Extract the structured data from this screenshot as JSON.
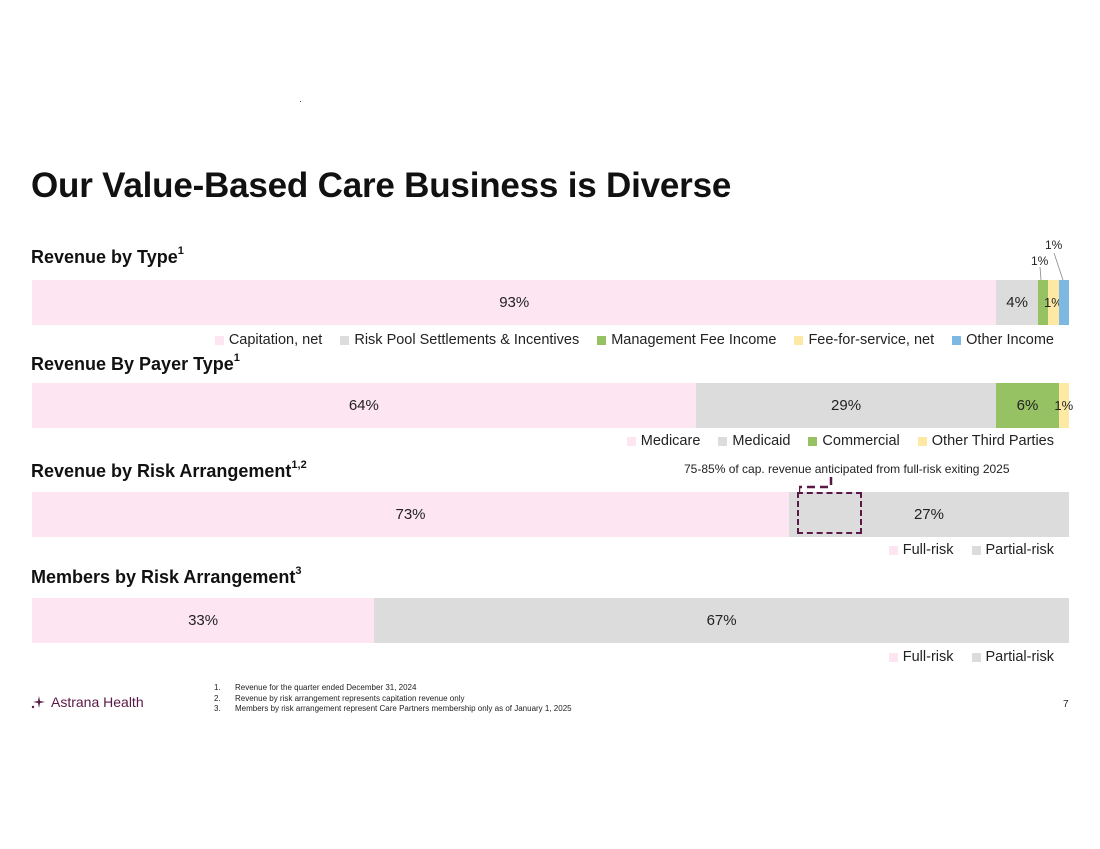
{
  "title": "Our Value-Based Care Business is Diverse",
  "colors": {
    "pink": "#fde5f1",
    "gray": "#dcdcdc",
    "green": "#96c264",
    "yellow": "#fde9a4",
    "blue": "#7cb8e2",
    "plum": "#5a1846"
  },
  "chart_data": [
    {
      "type": "bar",
      "orientation": "horizontal-stacked-100",
      "title": "Revenue by Type",
      "title_sup": "1",
      "series": [
        {
          "name": "Capitation, net",
          "value": 93,
          "label": "93%",
          "color": "#fde5f1"
        },
        {
          "name": "Risk Pool Settlements & Incentives",
          "value": 4,
          "label": "4%",
          "color": "#dcdcdc"
        },
        {
          "name": "Management Fee Income",
          "value": 1,
          "label": "1%",
          "color": "#96c264"
        },
        {
          "name": "Fee-for-service, net",
          "value": 1,
          "label": "1%",
          "color": "#fde9a4"
        },
        {
          "name": "Other Income",
          "value": 1,
          "label": "1%",
          "color": "#7cb8e2"
        }
      ],
      "legend": "bottom-right"
    },
    {
      "type": "bar",
      "orientation": "horizontal-stacked-100",
      "title": "Revenue By Payer Type",
      "title_sup": "1",
      "series": [
        {
          "name": "Medicare",
          "value": 64,
          "label": "64%",
          "color": "#fde5f1"
        },
        {
          "name": "Medicaid",
          "value": 29,
          "label": "29%",
          "color": "#dcdcdc"
        },
        {
          "name": "Commercial",
          "value": 6,
          "label": "6%",
          "color": "#96c264"
        },
        {
          "name": "Other Third Parties",
          "value": 1,
          "label": "1%",
          "color": "#fde9a4"
        }
      ],
      "legend": "bottom-right"
    },
    {
      "type": "bar",
      "orientation": "horizontal-stacked-100",
      "title": "Revenue by Risk Arrangement",
      "title_sup": "1,2",
      "series": [
        {
          "name": "Full-risk",
          "value": 73,
          "label": "73%",
          "color": "#fde5f1"
        },
        {
          "name": "Partial-risk",
          "value": 27,
          "label": "27%",
          "color": "#dcdcdc"
        }
      ],
      "annotation": "75-85% of cap. revenue anticipated from full-risk exiting 2025",
      "legend": "bottom-right"
    },
    {
      "type": "bar",
      "orientation": "horizontal-stacked-100",
      "title": "Members by Risk Arrangement",
      "title_sup": "3",
      "series": [
        {
          "name": "Full-risk",
          "value": 33,
          "label": "33%",
          "color": "#fde5f1"
        },
        {
          "name": "Partial-risk",
          "value": 67,
          "label": "67%",
          "color": "#dcdcdc"
        }
      ],
      "legend": "bottom-right"
    }
  ],
  "logo": {
    "text": "Astrana Health"
  },
  "footnotes": [
    {
      "num": "1.",
      "text": "Revenue for the quarter ended December 31, 2024"
    },
    {
      "num": "2.",
      "text": "Revenue by risk arrangement represents capitation revenue only"
    },
    {
      "num": "3.",
      "text": "Members by risk arrangement represent Care Partners membership only as of January 1, 2025"
    }
  ],
  "page_number": "7"
}
